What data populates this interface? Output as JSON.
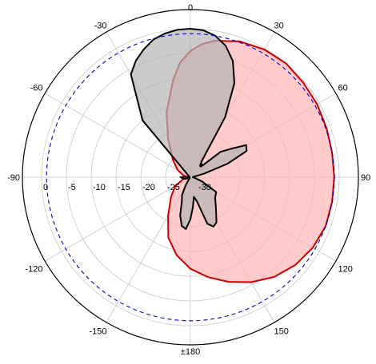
{
  "chart_data": {
    "type": "polar",
    "angle_unit": "degrees",
    "angle_zero": "top",
    "angle_direction": "clockwise",
    "angle_tick_labels": [
      {
        "angle": 0,
        "label": "0"
      },
      {
        "angle": 30,
        "label": "30"
      },
      {
        "angle": 60,
        "label": "60"
      },
      {
        "angle": 90,
        "label": "90"
      },
      {
        "angle": 120,
        "label": "120"
      },
      {
        "angle": 150,
        "label": "150"
      },
      {
        "angle": 180,
        "label": "±180"
      },
      {
        "angle": -150,
        "label": "-150"
      },
      {
        "angle": -120,
        "label": "-120"
      },
      {
        "angle": -90,
        "label": "-90"
      },
      {
        "angle": -60,
        "label": "-60"
      },
      {
        "angle": -30,
        "label": "-30"
      }
    ],
    "radial_unit": "dB",
    "radial_range": [
      -30,
      0
    ],
    "radial_tick_labels": [
      "0",
      "-5",
      "-10",
      "-15",
      "-20",
      "-25",
      "-30"
    ],
    "radial_ticks": [
      0,
      -5,
      -10,
      -15,
      -20,
      -25,
      -30
    ],
    "grid": true,
    "reference_circle": {
      "value": -1,
      "color": "#0000cc",
      "style": "dashed"
    },
    "series": [
      {
        "color": "#cc0000",
        "fill": "#ffb4b4",
        "angles": [
          -90,
          -75,
          -60,
          -45,
          -30,
          -20,
          -10,
          -5,
          0,
          5,
          10,
          20,
          30,
          40,
          50,
          60,
          70,
          80,
          90,
          100,
          110,
          120,
          130,
          140,
          150,
          160,
          170,
          180,
          -170,
          -160,
          -150,
          -135,
          -120,
          -105
        ],
        "values": [
          -29.5,
          -28.5,
          -27,
          -25,
          -21,
          -16,
          -10,
          -6.7,
          -4.5,
          -3,
          -2,
          -0.8,
          -0.2,
          0,
          -0.3,
          -0.5,
          -0.8,
          -1,
          -1,
          -1,
          -1,
          -1.5,
          -2.4,
          -3.7,
          -5.5,
          -7.5,
          -9.5,
          -11.5,
          -14,
          -17,
          -21,
          -24.5,
          -26.5,
          -28.5
        ]
      },
      {
        "color": "#000000",
        "fill": "#b4b4b4",
        "angles": [
          0,
          5,
          10,
          15,
          20,
          25,
          30,
          35,
          40,
          42,
          45,
          50,
          55,
          60,
          65,
          70,
          75,
          80,
          85,
          90,
          100,
          110,
          120,
          130,
          140,
          150,
          155,
          160,
          165,
          170,
          175,
          180,
          185,
          190,
          195,
          200,
          205,
          210,
          215,
          220,
          230,
          240,
          250,
          260,
          270,
          280,
          290,
          300,
          310,
          320,
          330,
          335,
          340,
          345,
          350,
          355
        ],
        "values": [
          0,
          -0.2,
          -1,
          -2.5,
          -5,
          -9,
          -16,
          -26,
          -27,
          -26.5,
          -27,
          -22,
          -20,
          -17,
          -17.5,
          -22,
          -27,
          -29,
          -29.5,
          -29.5,
          -29,
          -27.5,
          -24,
          -23.5,
          -22,
          -19.5,
          -19,
          -20,
          -25,
          -26,
          -24,
          -21.5,
          -19.5,
          -20,
          -22,
          -25,
          -26,
          -28,
          -29.5,
          -29.8,
          -29.8,
          -29.8,
          -29,
          -28.5,
          -28,
          -29.5,
          -29.8,
          -29.8,
          -29.5,
          -15,
          -6,
          -4,
          -2.5,
          -1.2,
          -0.5,
          -0.1
        ]
      }
    ]
  }
}
